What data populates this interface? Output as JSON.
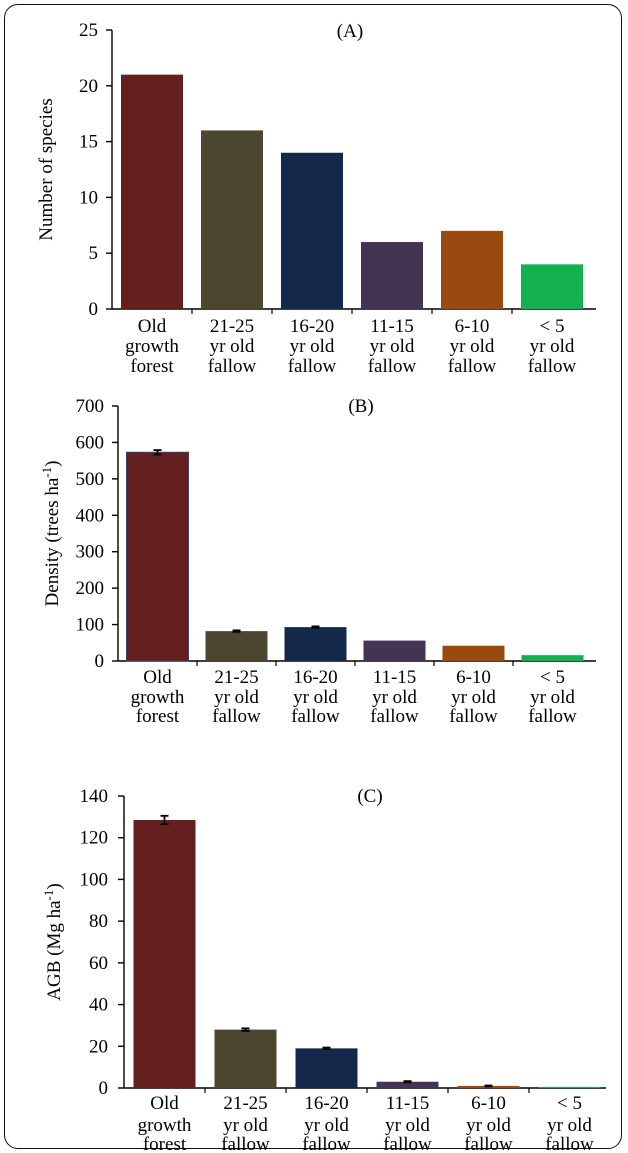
{
  "chart_data": [
    {
      "type": "bar",
      "title": "(A)",
      "ylabel": "Number of species",
      "ylabel_sup": "",
      "ylabel_end": "",
      "ylim": [
        0,
        25
      ],
      "yticks": [
        0,
        5,
        10,
        15,
        20,
        25
      ],
      "error_bars": false,
      "categories": [
        [
          "Old",
          "growth",
          "forest"
        ],
        [
          "21-25",
          "yr old",
          "fallow"
        ],
        [
          "16-20",
          "yr old",
          "fallow"
        ],
        [
          "11-15",
          "yr old",
          "fallow"
        ],
        [
          "6-10",
          "yr old",
          "fallow"
        ],
        [
          "< 5",
          "yr old",
          "fallow"
        ]
      ],
      "values": [
        21,
        16,
        14,
        6,
        7,
        4
      ],
      "errors": [
        0,
        0,
        0,
        0,
        0,
        0
      ],
      "colors": [
        "#63201f",
        "#4b4630",
        "#13284a",
        "#433453",
        "#9a4a0e",
        "#13b04f"
      ]
    },
    {
      "type": "bar",
      "title": "(B)",
      "ylabel": "Density (trees ha",
      "ylabel_sup": "-1",
      "ylabel_end": ")",
      "ylim": [
        0,
        700
      ],
      "yticks": [
        0,
        100,
        200,
        300,
        400,
        500,
        600,
        700
      ],
      "error_bars": true,
      "categories": [
        [
          "Old",
          "growth",
          "forest"
        ],
        [
          "21-25",
          "yr old",
          "fallow"
        ],
        [
          "16-20",
          "yr old",
          "fallow"
        ],
        [
          "11-15",
          "yr old",
          "fallow"
        ],
        [
          "6-10",
          "yr old",
          "fallow"
        ],
        [
          "< 5",
          "yr old",
          "fallow"
        ]
      ],
      "values": [
        573,
        82,
        93,
        56,
        42,
        16
      ],
      "errors": [
        6,
        2,
        2,
        0,
        0,
        0
      ],
      "colors": [
        "#63201f",
        "#4b4630",
        "#13284a",
        "#433453",
        "#9a4a0e",
        "#13b04f"
      ]
    },
    {
      "type": "bar",
      "title": "(C)",
      "ylabel": "AGB (Mg ha",
      "ylabel_sup": "-1",
      "ylabel_end": ")",
      "ylim": [
        0,
        140
      ],
      "yticks": [
        0,
        20,
        40,
        60,
        80,
        100,
        120,
        140
      ],
      "error_bars": true,
      "categories": [
        [
          "Old",
          "growth",
          "forest"
        ],
        [
          "21-25",
          "yr old",
          "fallow"
        ],
        [
          "16-20",
          "yr old",
          "fallow"
        ],
        [
          "11-15",
          "yr old",
          "fallow"
        ],
        [
          "6-10",
          "yr old",
          "fallow"
        ],
        [
          "< 5",
          "yr old",
          "fallow"
        ]
      ],
      "values": [
        128.5,
        28,
        19,
        3,
        1,
        0.5
      ],
      "errors": [
        2,
        0.6,
        0.4,
        0.3,
        0.2,
        0
      ],
      "colors": [
        "#63201f",
        "#4b4630",
        "#13284a",
        "#433453",
        "#9a4a0e",
        "#13b04f"
      ]
    }
  ]
}
